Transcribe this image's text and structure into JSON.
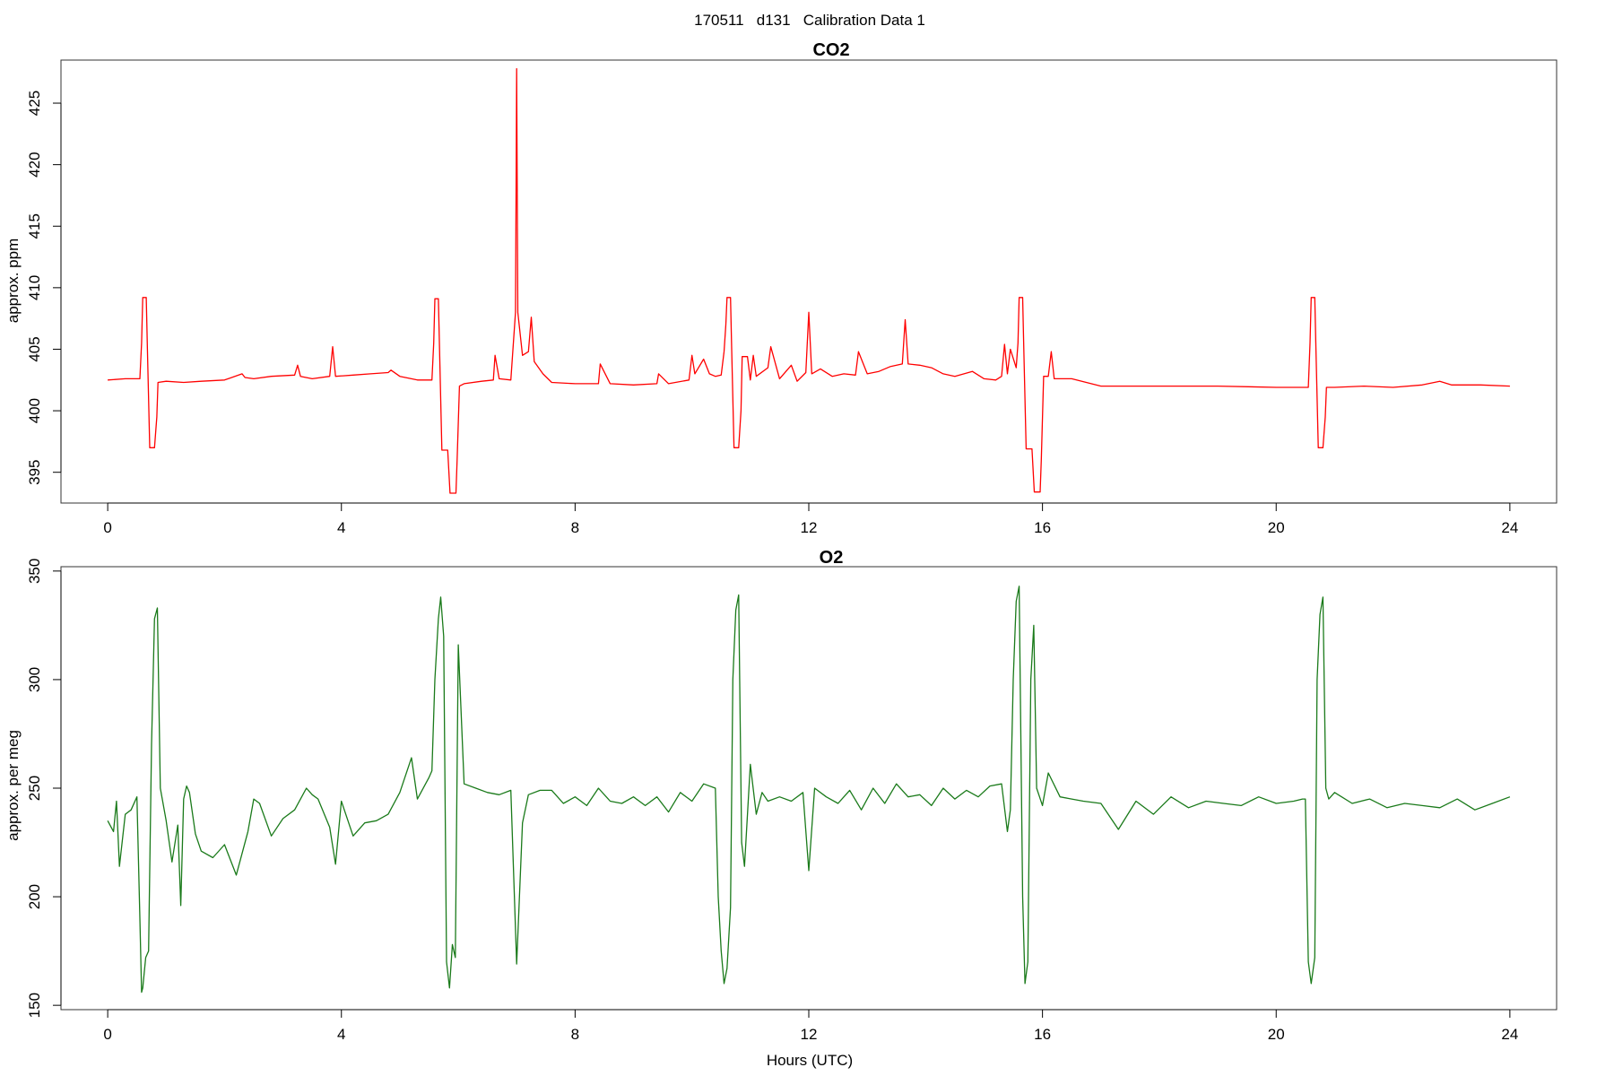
{
  "page_title": "170511   d131   Calibration Data 1",
  "colors": {
    "co2_line": "#ff0000",
    "o2_line": "#1a7a1a",
    "axes": "#000000",
    "background": "#ffffff"
  },
  "chart_data": [
    {
      "type": "line",
      "title": "CO2",
      "xlabel": "",
      "ylabel": "approx. ppm",
      "xlim": [
        -0.8,
        24.8
      ],
      "ylim": [
        392.5,
        428.5
      ],
      "x_ticks": [
        "0",
        "4",
        "8",
        "12",
        "16",
        "20",
        "24"
      ],
      "y_ticks": [
        "395",
        "400",
        "405",
        "410",
        "415",
        "420",
        "425"
      ],
      "grid": false,
      "legend": "none",
      "series": [
        {
          "color": "#ff0000",
          "x": [
            0.0,
            0.3,
            0.55,
            0.58,
            0.6,
            0.66,
            0.68,
            0.72,
            0.8,
            0.84,
            0.86,
            1.0,
            1.3,
            1.6,
            2.0,
            2.3,
            2.35,
            2.5,
            2.8,
            3.2,
            3.25,
            3.3,
            3.5,
            3.8,
            3.85,
            3.9,
            4.2,
            4.5,
            4.8,
            4.85,
            5.0,
            5.3,
            5.55,
            5.58,
            5.6,
            5.66,
            5.68,
            5.72,
            5.82,
            5.86,
            5.88,
            5.96,
            5.98,
            6.02,
            6.1,
            6.4,
            6.6,
            6.63,
            6.7,
            6.9,
            6.98,
            7.0,
            7.02,
            7.1,
            7.2,
            7.25,
            7.3,
            7.45,
            7.6,
            8.0,
            8.4,
            8.43,
            8.6,
            9.0,
            9.4,
            9.43,
            9.6,
            9.95,
            10.0,
            10.05,
            10.2,
            10.3,
            10.4,
            10.5,
            10.55,
            10.58,
            10.6,
            10.66,
            10.68,
            10.72,
            10.8,
            10.84,
            10.86,
            10.95,
            11.0,
            11.05,
            11.1,
            11.3,
            11.35,
            11.5,
            11.7,
            11.8,
            11.95,
            12.0,
            12.05,
            12.2,
            12.4,
            12.6,
            12.8,
            12.85,
            13.0,
            13.2,
            13.4,
            13.6,
            13.65,
            13.7,
            13.9,
            14.1,
            14.3,
            14.5,
            14.8,
            15.0,
            15.2,
            15.3,
            15.35,
            15.4,
            15.45,
            15.55,
            15.58,
            15.6,
            15.66,
            15.68,
            15.72,
            15.82,
            15.86,
            15.88,
            15.96,
            15.98,
            16.02,
            16.1,
            16.15,
            16.2,
            16.5,
            17.0,
            18.0,
            19.0,
            20.0,
            20.45,
            20.5,
            20.55,
            20.58,
            20.6,
            20.66,
            20.68,
            20.72,
            20.8,
            20.84,
            20.86,
            21.0,
            21.5,
            22.0,
            22.5,
            22.8,
            23.0,
            23.5,
            24.0
          ],
          "y": [
            402.5,
            402.6,
            402.6,
            405.5,
            409.2,
            409.2,
            405.0,
            397.0,
            397.0,
            399.5,
            402.3,
            402.4,
            402.3,
            402.4,
            402.5,
            403.0,
            402.7,
            402.6,
            402.8,
            402.9,
            403.7,
            402.8,
            402.6,
            402.8,
            405.2,
            402.8,
            402.9,
            403.0,
            403.1,
            403.3,
            402.8,
            402.5,
            402.5,
            405.5,
            409.1,
            409.1,
            405.0,
            396.8,
            396.8,
            393.3,
            393.3,
            393.3,
            396.0,
            402.0,
            402.2,
            402.4,
            402.5,
            404.5,
            402.6,
            402.5,
            408.0,
            427.8,
            408.0,
            404.5,
            404.8,
            407.6,
            404.0,
            403.0,
            402.3,
            402.2,
            402.2,
            403.8,
            402.2,
            402.1,
            402.2,
            403.0,
            402.2,
            402.5,
            404.5,
            403.0,
            404.2,
            403.0,
            402.8,
            402.9,
            404.8,
            407.0,
            409.2,
            409.2,
            405.0,
            397.0,
            397.0,
            400.0,
            404.4,
            404.4,
            402.5,
            404.5,
            402.8,
            403.5,
            405.2,
            402.6,
            403.7,
            402.4,
            403.1,
            408.0,
            403.0,
            403.4,
            402.8,
            403.0,
            402.9,
            404.8,
            403.0,
            403.2,
            403.6,
            403.8,
            407.4,
            403.8,
            403.7,
            403.5,
            403.0,
            402.8,
            403.2,
            402.6,
            402.5,
            402.8,
            405.4,
            403.0,
            405.0,
            403.5,
            405.5,
            409.2,
            409.2,
            405.0,
            396.9,
            396.9,
            393.4,
            393.4,
            393.4,
            396.0,
            402.8,
            402.8,
            404.8,
            402.6,
            402.6,
            402.0,
            402.0,
            402.0,
            401.9,
            401.9,
            401.9,
            401.9,
            405.5,
            409.2,
            409.2,
            405.0,
            397.0,
            397.0,
            399.5,
            401.9,
            401.9,
            402.0,
            401.9,
            402.1,
            402.4,
            402.1,
            402.1,
            402.0
          ]
        }
      ]
    },
    {
      "type": "line",
      "title": "O2",
      "xlabel": "Hours (UTC)",
      "ylabel": "approx. per meg",
      "xlim": [
        -0.8,
        24.8
      ],
      "ylim": [
        148.0,
        352.0
      ],
      "x_ticks": [
        "0",
        "4",
        "8",
        "12",
        "16",
        "20",
        "24"
      ],
      "y_ticks": [
        "150",
        "200",
        "250",
        "300",
        "350"
      ],
      "grid": false,
      "legend": "none",
      "series": [
        {
          "color": "#1a7a1a",
          "x": [
            0.0,
            0.1,
            0.15,
            0.2,
            0.3,
            0.4,
            0.5,
            0.55,
            0.58,
            0.6,
            0.65,
            0.7,
            0.75,
            0.8,
            0.85,
            0.9,
            1.0,
            1.1,
            1.2,
            1.25,
            1.3,
            1.35,
            1.4,
            1.5,
            1.6,
            1.8,
            2.0,
            2.2,
            2.4,
            2.5,
            2.6,
            2.8,
            3.0,
            3.2,
            3.4,
            3.5,
            3.6,
            3.8,
            3.9,
            4.0,
            4.2,
            4.4,
            4.6,
            4.8,
            5.0,
            5.2,
            5.3,
            5.5,
            5.55,
            5.6,
            5.66,
            5.7,
            5.75,
            5.8,
            5.85,
            5.9,
            5.95,
            6.0,
            6.1,
            6.3,
            6.5,
            6.7,
            6.9,
            7.0,
            7.1,
            7.2,
            7.4,
            7.6,
            7.8,
            8.0,
            8.2,
            8.4,
            8.6,
            8.8,
            9.0,
            9.2,
            9.4,
            9.6,
            9.8,
            10.0,
            10.2,
            10.4,
            10.45,
            10.5,
            10.55,
            10.6,
            10.66,
            10.7,
            10.75,
            10.8,
            10.85,
            10.9,
            11.0,
            11.1,
            11.2,
            11.3,
            11.5,
            11.7,
            11.9,
            12.0,
            12.1,
            12.3,
            12.5,
            12.7,
            12.9,
            13.1,
            13.3,
            13.5,
            13.7,
            13.9,
            14.1,
            14.3,
            14.5,
            14.7,
            14.9,
            15.1,
            15.3,
            15.4,
            15.45,
            15.5,
            15.55,
            15.6,
            15.66,
            15.7,
            15.75,
            15.8,
            15.85,
            15.9,
            16.0,
            16.1,
            16.3,
            16.5,
            16.7,
            17.0,
            17.3,
            17.6,
            17.9,
            18.2,
            18.5,
            18.8,
            19.1,
            19.4,
            19.7,
            20.0,
            20.3,
            20.45,
            20.5,
            20.55,
            20.6,
            20.66,
            20.7,
            20.75,
            20.8,
            20.85,
            20.9,
            21.0,
            21.3,
            21.6,
            21.9,
            22.2,
            22.5,
            22.8,
            23.1,
            23.4,
            23.7,
            24.0
          ],
          "y": [
            235,
            230,
            244,
            214,
            238,
            240,
            246,
            190,
            156,
            158,
            172,
            175,
            270,
            328,
            333,
            250,
            235,
            216,
            233,
            196,
            245,
            251,
            248,
            229,
            221,
            218,
            224,
            210,
            230,
            245,
            243,
            228,
            236,
            240,
            250,
            247,
            245,
            232,
            215,
            244,
            228,
            234,
            235,
            238,
            248,
            264,
            245,
            255,
            258,
            300,
            328,
            338,
            320,
            170,
            158,
            178,
            172,
            316,
            252,
            250,
            248,
            247,
            249,
            169,
            234,
            247,
            249,
            249,
            243,
            246,
            242,
            250,
            244,
            243,
            246,
            242,
            246,
            239,
            248,
            244,
            252,
            250,
            200,
            175,
            160,
            167,
            195,
            300,
            332,
            339,
            225,
            214,
            261,
            238,
            248,
            244,
            246,
            244,
            248,
            212,
            250,
            246,
            243,
            249,
            240,
            250,
            243,
            252,
            246,
            247,
            242,
            250,
            245,
            249,
            246,
            251,
            252,
            230,
            240,
            300,
            336,
            343,
            200,
            160,
            170,
            300,
            325,
            250,
            242,
            257,
            246,
            245,
            244,
            243,
            231,
            244,
            238,
            246,
            241,
            244,
            243,
            242,
            246,
            243,
            244,
            245,
            245,
            170,
            160,
            172,
            300,
            330,
            338,
            250,
            245,
            248,
            243,
            245,
            241,
            243,
            242,
            241,
            245,
            240,
            243,
            246
          ]
        }
      ]
    }
  ]
}
